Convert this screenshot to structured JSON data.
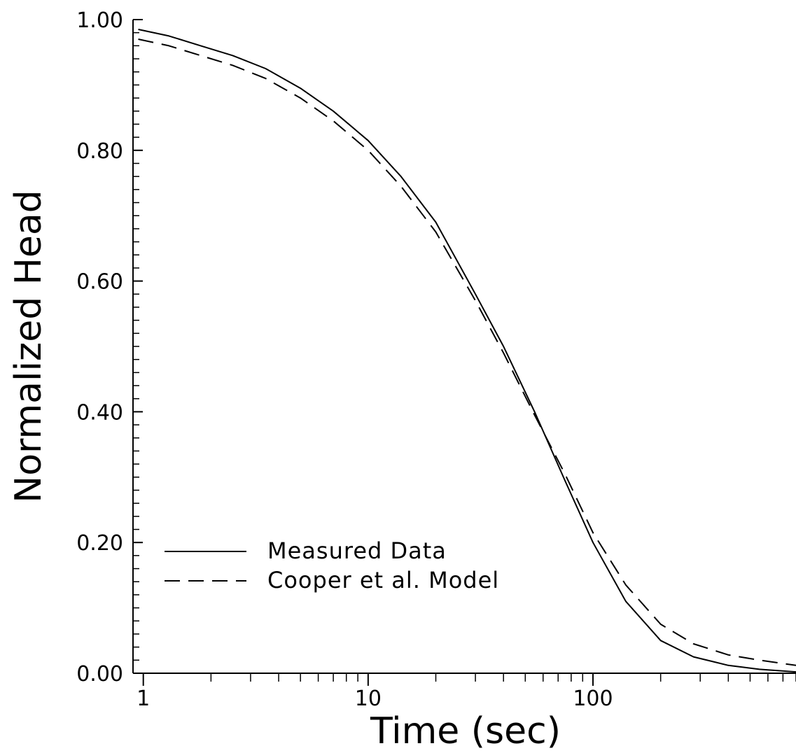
{
  "chart_data": {
    "type": "line",
    "title": "",
    "xlabel": "Time (sec)",
    "ylabel": "Normalized Head",
    "xscale": "log",
    "xlim": [
      0.9,
      800
    ],
    "ylim": [
      0,
      1
    ],
    "x_tick_labels": [
      "1",
      "10",
      "100"
    ],
    "y_tick_labels": [
      "0.00",
      "0.20",
      "0.40",
      "0.60",
      "0.80",
      "1.00"
    ],
    "grid": false,
    "legend_position": "lower-left",
    "series": [
      {
        "name": "Measured Data",
        "style": "solid",
        "x": [
          0.95,
          1.3,
          1.8,
          2.5,
          3.5,
          5,
          7,
          10,
          14,
          20,
          30,
          40,
          55,
          75,
          100,
          140,
          200,
          280,
          400,
          550,
          800
        ],
        "y": [
          0.985,
          0.975,
          0.96,
          0.945,
          0.925,
          0.895,
          0.86,
          0.815,
          0.76,
          0.69,
          0.58,
          0.5,
          0.4,
          0.295,
          0.2,
          0.11,
          0.05,
          0.025,
          0.012,
          0.006,
          0.002
        ]
      },
      {
        "name": "Cooper et al. Model",
        "style": "dashed",
        "x": [
          0.95,
          1.3,
          1.8,
          2.5,
          3.5,
          5,
          7,
          10,
          14,
          20,
          30,
          40,
          55,
          75,
          100,
          140,
          200,
          280,
          400,
          550,
          800
        ],
        "y": [
          0.97,
          0.96,
          0.945,
          0.93,
          0.91,
          0.88,
          0.845,
          0.8,
          0.745,
          0.675,
          0.57,
          0.49,
          0.395,
          0.305,
          0.215,
          0.135,
          0.075,
          0.045,
          0.028,
          0.02,
          0.012
        ]
      }
    ]
  }
}
